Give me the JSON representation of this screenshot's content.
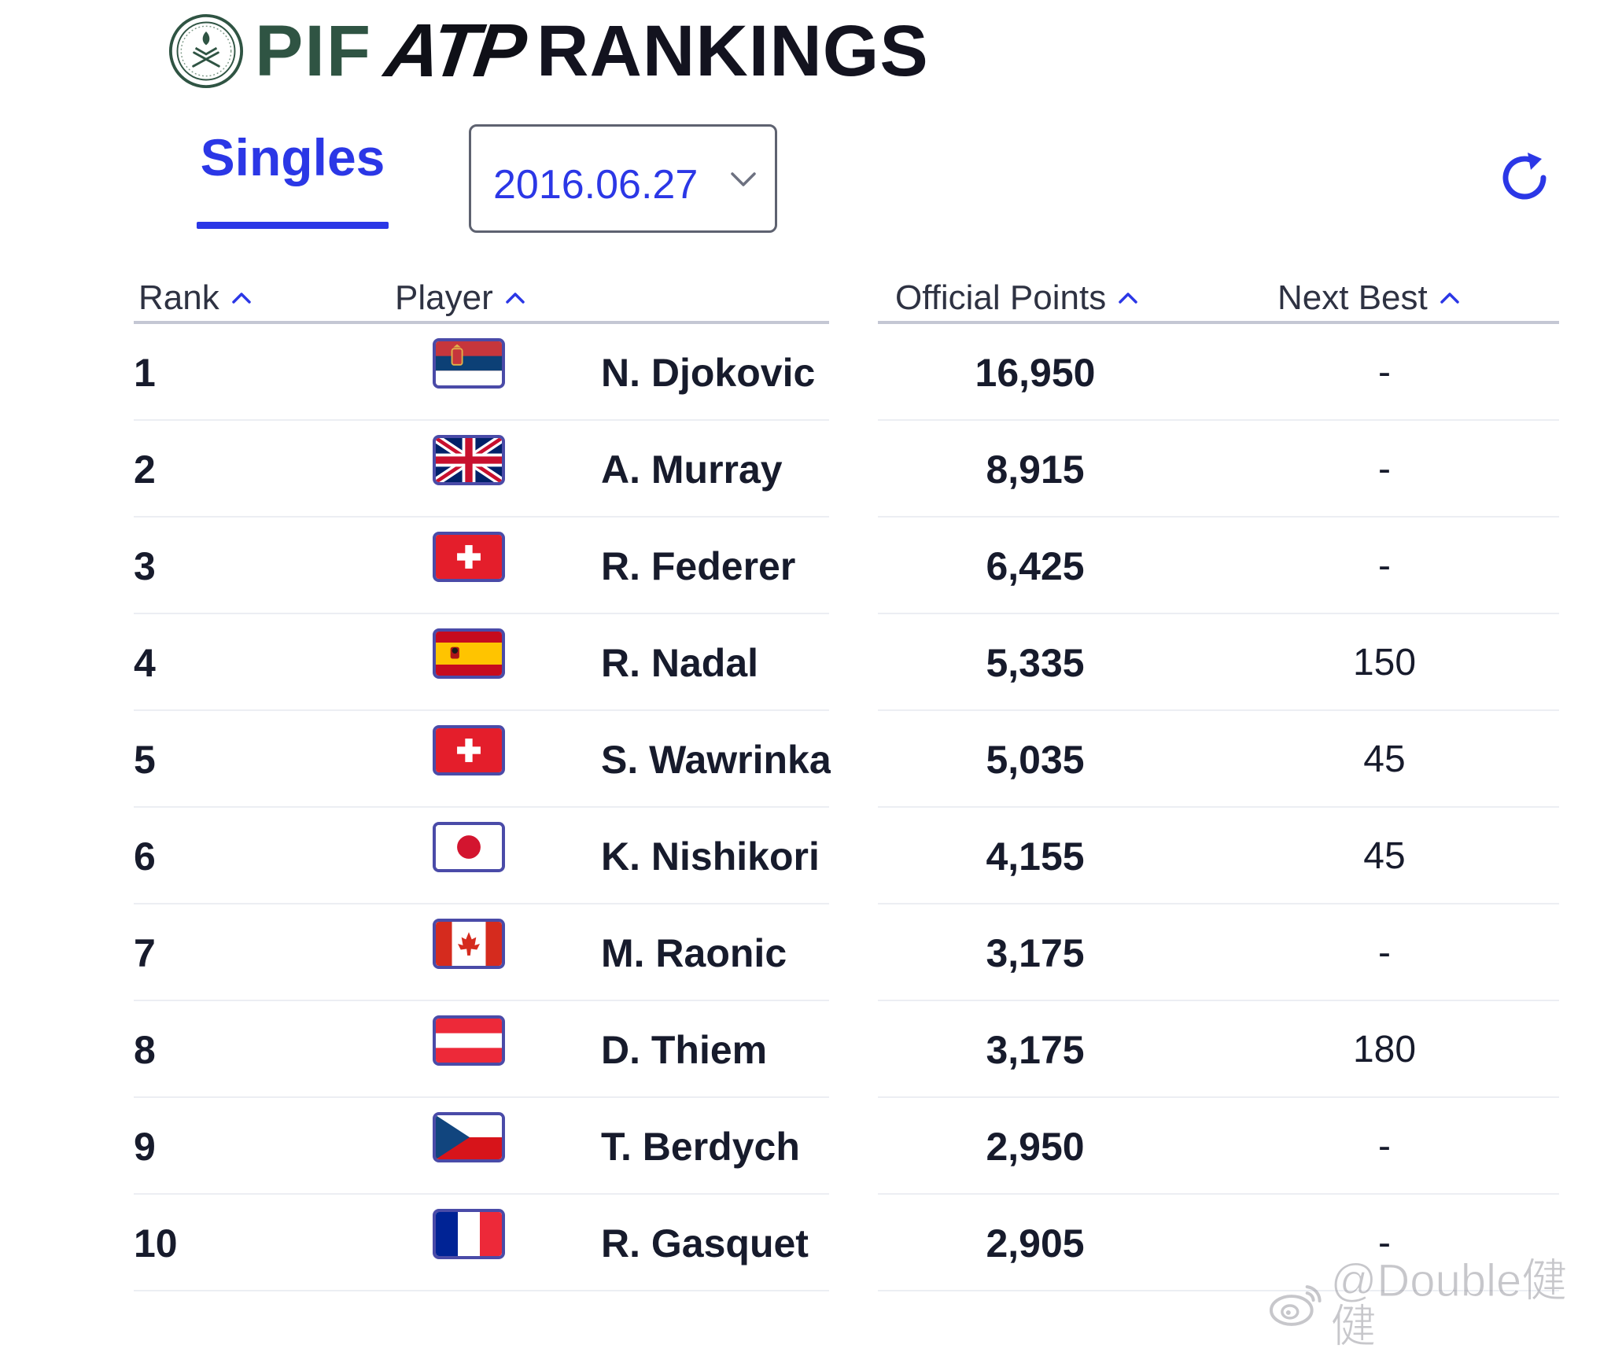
{
  "header": {
    "brand_pif": "PIF",
    "brand_atp": "ATP",
    "brand_rankings": "RANKINGS",
    "colors": {
      "pif_green": "#2f5443",
      "accent_blue": "#2b37e6"
    }
  },
  "controls": {
    "tab_label": "Singles",
    "date_selected": "2016.06.27",
    "date_chevron_icon": "chevron-down-icon",
    "refresh_icon": "refresh-icon"
  },
  "table": {
    "columns": {
      "rank": "Rank",
      "player": "Player",
      "points": "Official Points",
      "next_best": "Next Best"
    },
    "sort_icon": "caret-up-icon",
    "rows": [
      {
        "rank": "1",
        "flag": "serbia",
        "name": "N. Djokovic",
        "points": "16,950",
        "next_best": "-"
      },
      {
        "rank": "2",
        "flag": "great-britain",
        "name": "A. Murray",
        "points": "8,915",
        "next_best": "-"
      },
      {
        "rank": "3",
        "flag": "switzerland",
        "name": "R. Federer",
        "points": "6,425",
        "next_best": "-"
      },
      {
        "rank": "4",
        "flag": "spain",
        "name": "R. Nadal",
        "points": "5,335",
        "next_best": "150"
      },
      {
        "rank": "5",
        "flag": "switzerland",
        "name": "S. Wawrinka",
        "points": "5,035",
        "next_best": "45"
      },
      {
        "rank": "6",
        "flag": "japan",
        "name": "K. Nishikori",
        "points": "4,155",
        "next_best": "45"
      },
      {
        "rank": "7",
        "flag": "canada",
        "name": "M. Raonic",
        "points": "3,175",
        "next_best": "-"
      },
      {
        "rank": "8",
        "flag": "austria",
        "name": "D. Thiem",
        "points": "3,175",
        "next_best": "180"
      },
      {
        "rank": "9",
        "flag": "czech-republic",
        "name": "T. Berdych",
        "points": "2,950",
        "next_best": "-"
      },
      {
        "rank": "10",
        "flag": "france",
        "name": "R. Gasquet",
        "points": "2,905",
        "next_best": "-"
      }
    ]
  },
  "watermark": {
    "text": "@Double健健",
    "icon": "weibo-icon"
  }
}
